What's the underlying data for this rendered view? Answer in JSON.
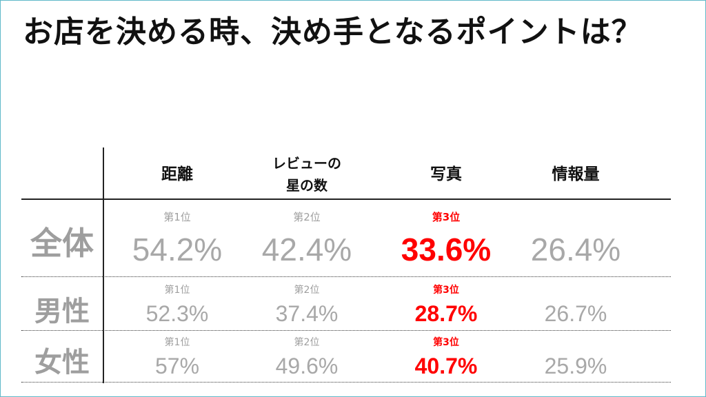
{
  "title": "お店を決める時、決め手となるポイントは？",
  "chart_data": {
    "type": "table",
    "columns": [
      {
        "label_line1": "距離",
        "label_line2": ""
      },
      {
        "label_line1": "レビューの",
        "label_line2": "星の数"
      },
      {
        "label_line1": "写真",
        "label_line2": ""
      },
      {
        "label_line1": "情報量",
        "label_line2": ""
      }
    ],
    "rows": [
      {
        "label": "全体",
        "ranks": [
          "第1位",
          "第2位",
          "第3位",
          ""
        ],
        "values": [
          "54.2%",
          "42.4%",
          "33.6%",
          "26.4%"
        ],
        "values_numeric": [
          54.2,
          42.4,
          33.6,
          26.4
        ]
      },
      {
        "label": "男性",
        "ranks": [
          "第1位",
          "第2位",
          "第3位",
          ""
        ],
        "values": [
          "52.3%",
          "37.4%",
          "28.7%",
          "26.7%"
        ],
        "values_numeric": [
          52.3,
          37.4,
          28.7,
          26.7
        ]
      },
      {
        "label": "女性",
        "ranks": [
          "第1位",
          "第2位",
          "第3位",
          ""
        ],
        "values": [
          "57%",
          "49.6%",
          "40.7%",
          "25.9%"
        ],
        "values_numeric": [
          57,
          49.6,
          40.7,
          25.9
        ]
      }
    ],
    "highlight_column": 2,
    "colors": {
      "highlight": "#ff0000",
      "muted": "#a8a8a8",
      "text": "#111111",
      "border": "#5fb9c9"
    }
  }
}
